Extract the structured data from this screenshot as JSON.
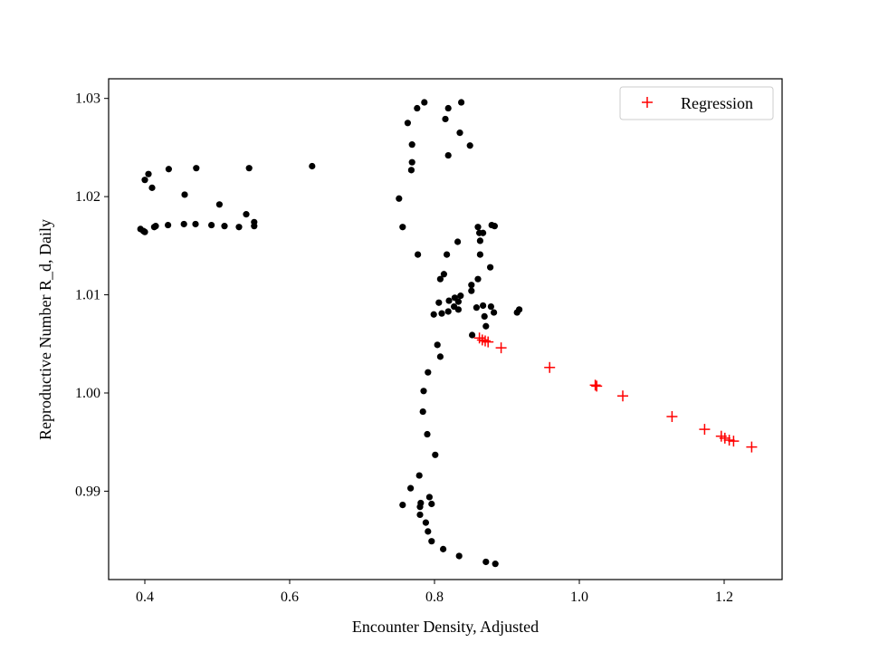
{
  "chart_data": {
    "type": "scatter",
    "title": "",
    "xlabel": "Encounter Density, Adjusted",
    "ylabel": "Reproductive Number R_d, Daily",
    "xlim": [
      0.35,
      1.28
    ],
    "ylim": [
      0.981,
      1.032
    ],
    "xticks": [
      0.4,
      0.6,
      0.8,
      1.0,
      1.2
    ],
    "xtick_labels": [
      "0.4",
      "0.6",
      "0.8",
      "1.0",
      "1.2"
    ],
    "yticks": [
      0.99,
      1.0,
      1.01,
      1.02,
      1.03
    ],
    "ytick_labels": [
      "0.99",
      "1.00",
      "1.01",
      "1.02",
      "1.03"
    ],
    "grid": false,
    "legend_position": "top-right",
    "series": [
      {
        "marker": "circle",
        "color": "#000000",
        "points": [
          [
            0.394,
            1.0167
          ],
          [
            0.398,
            1.0165
          ],
          [
            0.4,
            1.0164
          ],
          [
            0.413,
            1.0169
          ],
          [
            0.415,
            1.017
          ],
          [
            0.432,
            1.0171
          ],
          [
            0.454,
            1.0172
          ],
          [
            0.47,
            1.0172
          ],
          [
            0.492,
            1.0171
          ],
          [
            0.51,
            1.017
          ],
          [
            0.53,
            1.0169
          ],
          [
            0.551,
            1.017
          ],
          [
            0.551,
            1.0174
          ],
          [
            0.54,
            1.0182
          ],
          [
            0.503,
            1.0192
          ],
          [
            0.455,
            1.0202
          ],
          [
            0.41,
            1.0209
          ],
          [
            0.4,
            1.0217
          ],
          [
            0.405,
            1.0223
          ],
          [
            0.433,
            1.0228
          ],
          [
            0.471,
            1.0229
          ],
          [
            0.544,
            1.0229
          ],
          [
            0.631,
            1.0231
          ],
          [
            0.751,
            1.0198
          ],
          [
            0.756,
            1.0169
          ],
          [
            0.777,
            1.0141
          ],
          [
            0.768,
            1.0227
          ],
          [
            0.769,
            1.0235
          ],
          [
            0.769,
            1.0253
          ],
          [
            0.763,
            1.0275
          ],
          [
            0.776,
            1.029
          ],
          [
            0.786,
            1.0296
          ],
          [
            0.815,
            1.0279
          ],
          [
            0.819,
            1.029
          ],
          [
            0.837,
            1.0296
          ],
          [
            0.835,
            1.0265
          ],
          [
            0.849,
            1.0252
          ],
          [
            0.819,
            1.0242
          ],
          [
            0.832,
            1.0154
          ],
          [
            0.817,
            1.0141
          ],
          [
            0.808,
            1.0116
          ],
          [
            0.813,
            1.0121
          ],
          [
            0.86,
            1.0169
          ],
          [
            0.862,
            1.0163
          ],
          [
            0.867,
            1.0163
          ],
          [
            0.879,
            1.0171
          ],
          [
            0.883,
            1.017
          ],
          [
            0.863,
            1.0155
          ],
          [
            0.863,
            1.0141
          ],
          [
            0.877,
            1.0128
          ],
          [
            0.86,
            1.0116
          ],
          [
            0.851,
            1.011
          ],
          [
            0.851,
            1.0104
          ],
          [
            0.836,
            1.0099
          ],
          [
            0.828,
            1.0097
          ],
          [
            0.833,
            1.0093
          ],
          [
            0.82,
            1.0094
          ],
          [
            0.806,
            1.0092
          ],
          [
            0.827,
            1.0088
          ],
          [
            0.819,
            1.0083
          ],
          [
            0.81,
            1.0081
          ],
          [
            0.799,
            1.008
          ],
          [
            0.833,
            1.0085
          ],
          [
            0.858,
            1.0087
          ],
          [
            0.867,
            1.0089
          ],
          [
            0.878,
            1.0088
          ],
          [
            0.882,
            1.0082
          ],
          [
            0.869,
            1.0078
          ],
          [
            0.914,
            1.0082
          ],
          [
            0.917,
            1.0085
          ],
          [
            0.871,
            1.0068
          ],
          [
            0.852,
            1.0059
          ],
          [
            0.804,
            1.0049
          ],
          [
            0.808,
            1.0037
          ],
          [
            0.791,
            1.0021
          ],
          [
            0.785,
            1.0002
          ],
          [
            0.784,
            0.9981
          ],
          [
            0.79,
            0.9958
          ],
          [
            0.801,
            0.9937
          ],
          [
            0.779,
            0.9916
          ],
          [
            0.767,
            0.9903
          ],
          [
            0.756,
            0.9886
          ],
          [
            0.793,
            0.9894
          ],
          [
            0.796,
            0.9887
          ],
          [
            0.781,
            0.9888
          ],
          [
            0.78,
            0.9884
          ],
          [
            0.78,
            0.9876
          ],
          [
            0.788,
            0.9868
          ],
          [
            0.791,
            0.9859
          ],
          [
            0.796,
            0.9849
          ],
          [
            0.812,
            0.9841
          ],
          [
            0.834,
            0.9834
          ],
          [
            0.871,
            0.9828
          ],
          [
            0.884,
            0.9826
          ]
        ]
      },
      {
        "name": "Regression",
        "marker": "plus",
        "color": "#ff0000",
        "points": [
          [
            0.862,
            1.0056
          ],
          [
            0.866,
            1.0054
          ],
          [
            0.87,
            1.0053
          ],
          [
            0.874,
            1.0052
          ],
          [
            0.892,
            1.0046
          ],
          [
            0.959,
            1.0026
          ],
          [
            1.022,
            1.0008
          ],
          [
            1.024,
            1.0007
          ],
          [
            1.06,
            0.9997
          ],
          [
            1.128,
            0.9976
          ],
          [
            1.173,
            0.9963
          ],
          [
            1.196,
            0.9956
          ],
          [
            1.201,
            0.9954
          ],
          [
            1.207,
            0.9952
          ],
          [
            1.213,
            0.9951
          ],
          [
            1.238,
            0.9945
          ]
        ]
      }
    ]
  }
}
